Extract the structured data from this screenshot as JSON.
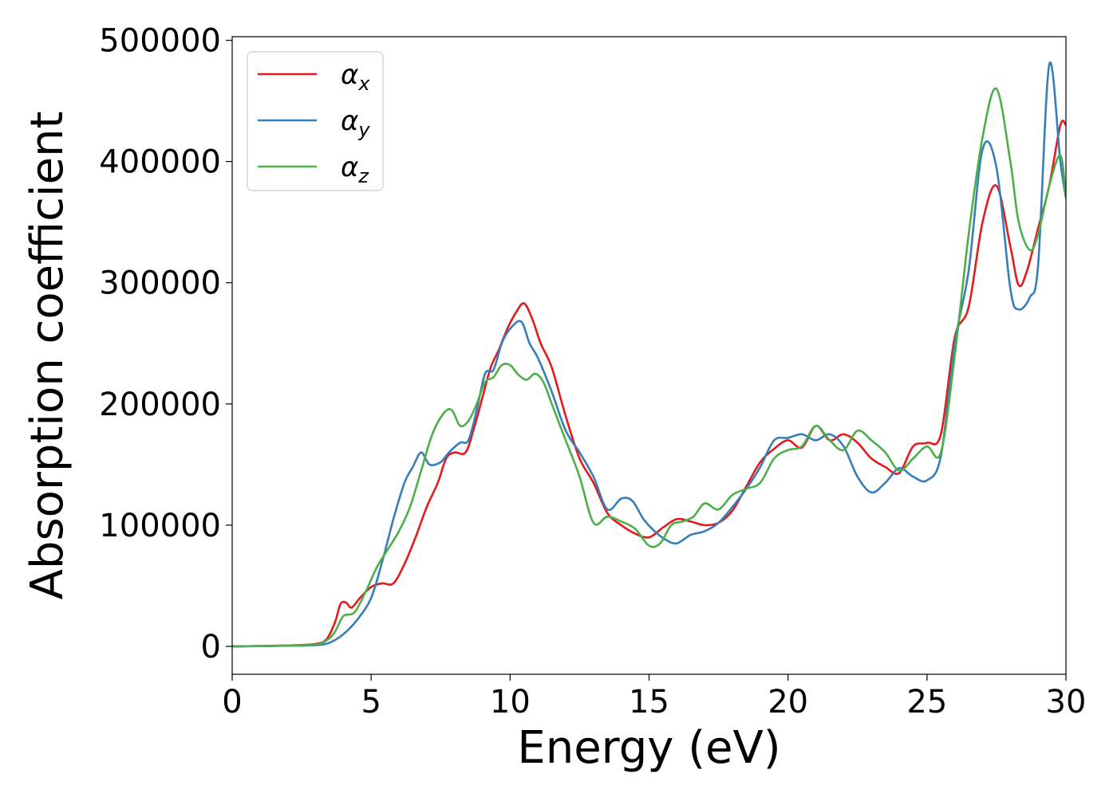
{
  "chart_data": {
    "type": "line",
    "xlabel": "Energy (eV)",
    "ylabel": "Absorption coefficient",
    "xlim": [
      0,
      30
    ],
    "ylim": [
      -23000,
      503000
    ],
    "xticks": [
      0,
      5,
      10,
      15,
      20,
      25,
      30
    ],
    "yticks": [
      0,
      100000,
      200000,
      300000,
      400000,
      500000
    ],
    "grid": false,
    "legend_position": "top-left",
    "series": [
      {
        "name": "αx",
        "symbol": "α",
        "subscript": "x",
        "color": "#e41a1c",
        "x": [
          0,
          1,
          2,
          3,
          3.4,
          3.7,
          3.9,
          4.1,
          4.3,
          4.6,
          5.0,
          5.4,
          5.8,
          6.2,
          6.6,
          7.0,
          7.4,
          7.7,
          8.0,
          8.4,
          8.7,
          9.0,
          9.3,
          9.6,
          9.9,
          10.2,
          10.5,
          10.8,
          11.1,
          11.5,
          12.0,
          12.5,
          13.0,
          13.5,
          14.0,
          14.5,
          15.0,
          15.5,
          16.0,
          16.5,
          17.0,
          17.5,
          18.0,
          18.5,
          19.0,
          19.5,
          20.0,
          20.5,
          21.0,
          21.5,
          22.0,
          22.5,
          23.0,
          23.5,
          24.0,
          24.5,
          25.0,
          25.5,
          26.0,
          26.5,
          27.0,
          27.5,
          28.0,
          28.3,
          28.6,
          29.0,
          29.4,
          29.8,
          30
        ],
        "y": [
          0,
          300,
          800,
          2000,
          6000,
          20000,
          35000,
          36000,
          32000,
          40000,
          49000,
          52000,
          52000,
          68000,
          90000,
          115000,
          135000,
          155000,
          160000,
          160000,
          180000,
          205000,
          230000,
          245000,
          262000,
          275000,
          283000,
          270000,
          250000,
          230000,
          190000,
          155000,
          135000,
          110000,
          100000,
          93000,
          90000,
          98000,
          105000,
          103000,
          100000,
          102000,
          112000,
          132000,
          152000,
          163000,
          170000,
          164000,
          182000,
          170000,
          175000,
          168000,
          155000,
          148000,
          143000,
          165000,
          168000,
          175000,
          255000,
          280000,
          350000,
          380000,
          330000,
          298000,
          310000,
          345000,
          380000,
          430000,
          430000
        ]
      },
      {
        "name": "αy",
        "symbol": "α",
        "subscript": "y",
        "color": "#377eb8",
        "x": [
          0,
          1,
          2,
          3,
          3.5,
          4.0,
          4.5,
          5.0,
          5.4,
          5.8,
          6.2,
          6.5,
          6.8,
          7.1,
          7.5,
          7.8,
          8.2,
          8.5,
          8.8,
          9.1,
          9.4,
          9.7,
          10.0,
          10.4,
          10.7,
          11.0,
          11.5,
          12.0,
          12.5,
          13.0,
          13.5,
          14.0,
          14.4,
          14.8,
          15.2,
          15.6,
          16.0,
          16.5,
          17.0,
          17.5,
          18.0,
          18.5,
          19.0,
          19.5,
          20.0,
          20.5,
          21.0,
          21.5,
          22.0,
          22.5,
          23.0,
          23.5,
          24.0,
          24.5,
          25.0,
          25.5,
          26.0,
          26.5,
          27.0,
          27.5,
          28.0,
          28.3,
          28.7,
          29.0,
          29.4,
          29.8,
          30
        ],
        "y": [
          0,
          200,
          500,
          1000,
          3000,
          10000,
          22000,
          40000,
          70000,
          105000,
          135000,
          148000,
          160000,
          150000,
          152000,
          160000,
          168000,
          170000,
          195000,
          225000,
          228000,
          250000,
          262000,
          268000,
          250000,
          238000,
          210000,
          178000,
          160000,
          140000,
          113000,
          122000,
          120000,
          105000,
          95000,
          88000,
          85000,
          92000,
          95000,
          102000,
          115000,
          130000,
          148000,
          170000,
          172000,
          175000,
          170000,
          175000,
          165000,
          140000,
          127000,
          135000,
          147000,
          140000,
          137000,
          157000,
          250000,
          310000,
          410000,
          395000,
          295000,
          278000,
          288000,
          315000,
          480000,
          400000,
          370000
        ]
      },
      {
        "name": "αz",
        "symbol": "α",
        "subscript": "z",
        "color": "#4daf4a",
        "x": [
          0,
          1,
          2,
          3,
          3.4,
          3.7,
          4.0,
          4.4,
          4.8,
          5.2,
          5.6,
          6.0,
          6.4,
          6.8,
          7.2,
          7.6,
          7.9,
          8.2,
          8.5,
          8.8,
          9.1,
          9.4,
          9.7,
          10.0,
          10.3,
          10.6,
          10.9,
          11.2,
          11.5,
          12.0,
          12.5,
          13.0,
          13.5,
          14.0,
          14.5,
          15.0,
          15.4,
          15.8,
          16.2,
          16.6,
          17.0,
          17.5,
          18.0,
          18.5,
          19.0,
          19.5,
          20.0,
          20.5,
          21.0,
          21.5,
          22.0,
          22.5,
          23.0,
          23.5,
          24.0,
          24.5,
          25.0,
          25.5,
          26.0,
          26.5,
          27.0,
          27.5,
          28.0,
          28.3,
          28.7,
          29.0,
          29.4,
          29.8,
          30
        ],
        "y": [
          0,
          300,
          800,
          1500,
          5000,
          12000,
          25000,
          28000,
          45000,
          65000,
          80000,
          95000,
          115000,
          145000,
          175000,
          192000,
          195000,
          182000,
          186000,
          200000,
          218000,
          222000,
          232000,
          232000,
          224000,
          220000,
          225000,
          218000,
          200000,
          170000,
          140000,
          102000,
          107000,
          103000,
          97000,
          83000,
          85000,
          100000,
          103000,
          107000,
          118000,
          113000,
          125000,
          130000,
          135000,
          155000,
          162000,
          165000,
          182000,
          170000,
          162000,
          178000,
          170000,
          160000,
          145000,
          155000,
          165000,
          160000,
          240000,
          340000,
          420000,
          460000,
          400000,
          350000,
          327000,
          340000,
          380000,
          405000,
          370000
        ]
      }
    ]
  }
}
